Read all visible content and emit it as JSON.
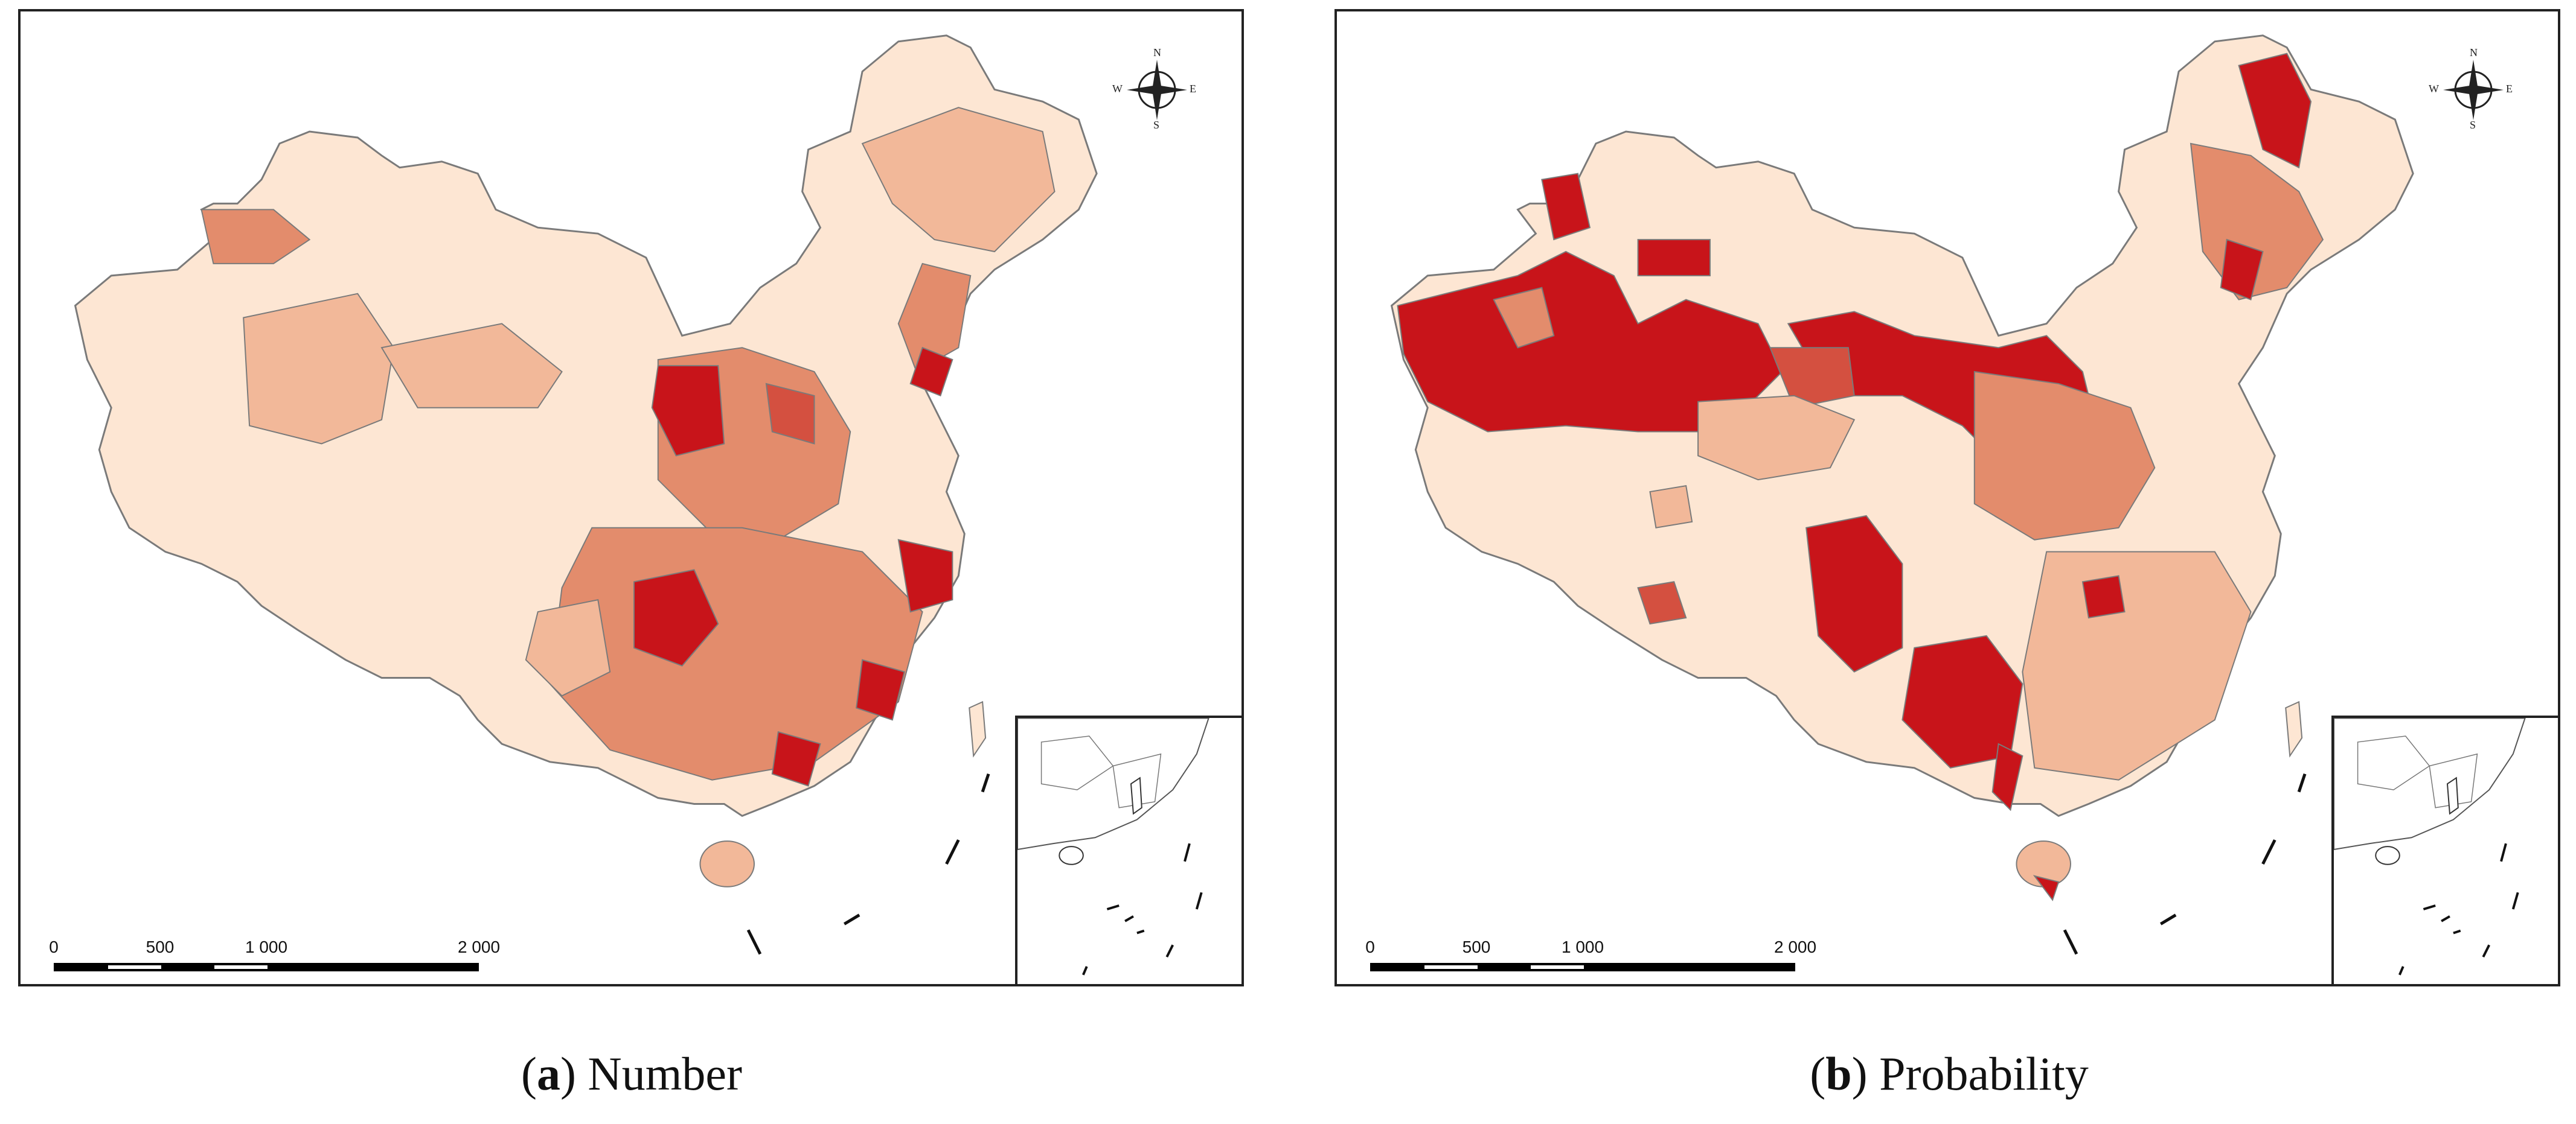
{
  "legend_colors": {
    "class1": "#fde6d3",
    "class2": "#f2b899",
    "class3": "#e38c6c",
    "class4": "#d45040",
    "class5": "#c8141a",
    "outline": "#7a7a7a"
  },
  "compass": {
    "n": "N",
    "s": "S",
    "e": "E",
    "w": "W"
  },
  "scale": {
    "ticks": [
      "0",
      "500",
      "1 000",
      "2 000"
    ]
  },
  "panels": [
    {
      "letter": "a",
      "title": "Number"
    },
    {
      "letter": "b",
      "title": "Probability"
    }
  ]
}
